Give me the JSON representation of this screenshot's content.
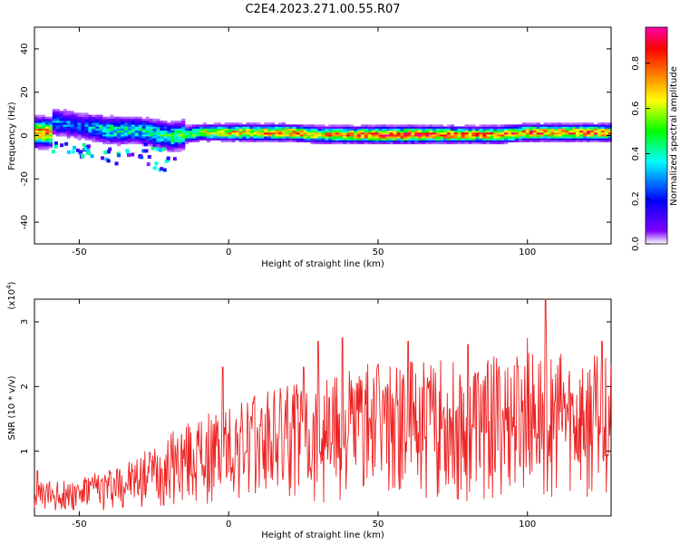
{
  "title": "C2E4.2023.271.00.55.R07",
  "chart_data": [
    {
      "type": "heatmap",
      "xlabel": "Height of straight line (km)",
      "ylabel": "Frequency (Hz)",
      "xlim": [
        -65,
        128
      ],
      "ylim": [
        -50,
        50
      ],
      "x_ticks": [
        -50,
        0,
        50,
        100
      ],
      "y_ticks": [
        -40,
        -20,
        0,
        20,
        40
      ],
      "colorbar": {
        "label": "Normalized spectral amplitude",
        "range": [
          0,
          1
        ],
        "ticks": [
          "0.0",
          "0.2",
          "0.4",
          "0.6",
          "0.8"
        ],
        "colormap": [
          "#ffffff",
          "#7f00ff",
          "#0000ff",
          "#00ffff",
          "#00ff00",
          "#ffff00",
          "#ff8000",
          "#ff0000",
          "#ff00aa"
        ]
      },
      "ridge": [
        {
          "x": -60,
          "freq": 6,
          "amp": 0.35
        },
        {
          "x": -50,
          "freq": 4,
          "amp": 0.3
        },
        {
          "x": -40,
          "freq": 2,
          "amp": 0.45
        },
        {
          "x": -30,
          "freq": 2,
          "amp": 0.4
        },
        {
          "x": -20,
          "freq": -1,
          "amp": 0.5
        },
        {
          "x": -10,
          "freq": 1,
          "amp": 0.6
        },
        {
          "x": 0,
          "freq": 1,
          "amp": 0.7
        },
        {
          "x": 10,
          "freq": 1,
          "amp": 0.75
        },
        {
          "x": 20,
          "freq": 1,
          "amp": 0.8
        },
        {
          "x": 30,
          "freq": 0,
          "amp": 0.7
        },
        {
          "x": 40,
          "freq": 0,
          "amp": 0.8
        },
        {
          "x": 50,
          "freq": 0,
          "amp": 0.9
        },
        {
          "x": 60,
          "freq": 0,
          "amp": 0.9
        },
        {
          "x": 70,
          "freq": 0,
          "amp": 0.85
        },
        {
          "x": 80,
          "freq": 0,
          "amp": 0.8
        },
        {
          "x": 90,
          "freq": 0,
          "amp": 0.8
        },
        {
          "x": 100,
          "freq": 1,
          "amp": 0.85
        },
        {
          "x": 110,
          "freq": 1,
          "amp": 0.8
        },
        {
          "x": 120,
          "freq": 1,
          "amp": 0.85
        },
        {
          "x": 128,
          "freq": 1,
          "amp": 0.8
        }
      ]
    },
    {
      "type": "line",
      "xlabel": "Height of straight line (km)",
      "ylabel": "SNR (10 * v/v)",
      "y_multiplier": "(x10",
      "y_multiplier_exp": "4",
      "y_multiplier_close": ")",
      "xlim": [
        -65,
        128
      ],
      "ylim": [
        0,
        3.35
      ],
      "x_ticks": [
        -50,
        0,
        50,
        100
      ],
      "y_ticks": [
        1,
        2,
        3
      ],
      "color": "#ee2222",
      "envelope": [
        {
          "x": -65,
          "y": 0.3
        },
        {
          "x": -50,
          "y": 0.35
        },
        {
          "x": -40,
          "y": 0.45
        },
        {
          "x": -30,
          "y": 0.55
        },
        {
          "x": -20,
          "y": 0.75
        },
        {
          "x": -10,
          "y": 0.9
        },
        {
          "x": 0,
          "y": 1.0
        },
        {
          "x": 10,
          "y": 1.1
        },
        {
          "x": 20,
          "y": 1.2
        },
        {
          "x": 30,
          "y": 1.3
        },
        {
          "x": 40,
          "y": 1.35
        },
        {
          "x": 50,
          "y": 1.4
        },
        {
          "x": 60,
          "y": 1.4
        },
        {
          "x": 80,
          "y": 1.45
        },
        {
          "x": 100,
          "y": 1.5
        },
        {
          "x": 128,
          "y": 1.45
        }
      ],
      "peaks": [
        {
          "x": -64,
          "y": 0.7
        },
        {
          "x": -26,
          "y": 0.85
        },
        {
          "x": -10,
          "y": 1.45
        },
        {
          "x": -2,
          "y": 2.3
        },
        {
          "x": 25,
          "y": 2.3
        },
        {
          "x": 30,
          "y": 2.7
        },
        {
          "x": 38,
          "y": 2.75
        },
        {
          "x": 60,
          "y": 2.7
        },
        {
          "x": 80,
          "y": 2.65
        },
        {
          "x": 100,
          "y": 2.75
        },
        {
          "x": 106,
          "y": 3.35
        },
        {
          "x": 125,
          "y": 2.7
        }
      ]
    }
  ]
}
